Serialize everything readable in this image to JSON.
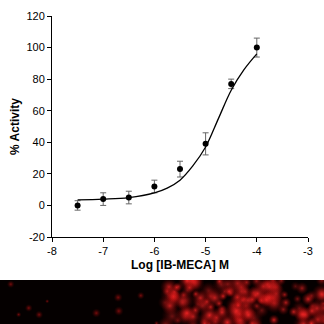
{
  "chart_data": {
    "type": "scatter",
    "xlabel": "Log [IB-MECA] M",
    "ylabel": "% Activity",
    "xlim": [
      -8,
      -3
    ],
    "xticks": [
      -8,
      -7,
      -6,
      -5,
      -4,
      -3
    ],
    "ylim": [
      -20,
      120
    ],
    "yticks": [
      -20,
      0,
      20,
      40,
      60,
      80,
      100,
      120
    ],
    "grid": false,
    "series": [
      {
        "type": "scatter",
        "marker": "circle",
        "color": "#000000",
        "x": [
          -7.5,
          -7,
          -6.5,
          -6,
          -5.5,
          -5,
          -4.5,
          -4
        ],
        "values": [
          0,
          4,
          5,
          12,
          23,
          39,
          77,
          100
        ],
        "error": [
          3,
          4,
          4,
          4,
          5,
          7,
          3,
          6
        ]
      },
      {
        "type": "line",
        "line_style": "solid",
        "color": "#000000",
        "x": [
          -7.5,
          -7,
          -6.5,
          -6,
          -5.75,
          -5.5,
          -5.25,
          -5,
          -4.75,
          -4.5,
          -4.25,
          -4
        ],
        "values": [
          3.5,
          4,
          5,
          8,
          11,
          16,
          25,
          37,
          55,
          73,
          86,
          96
        ]
      }
    ]
  }
}
